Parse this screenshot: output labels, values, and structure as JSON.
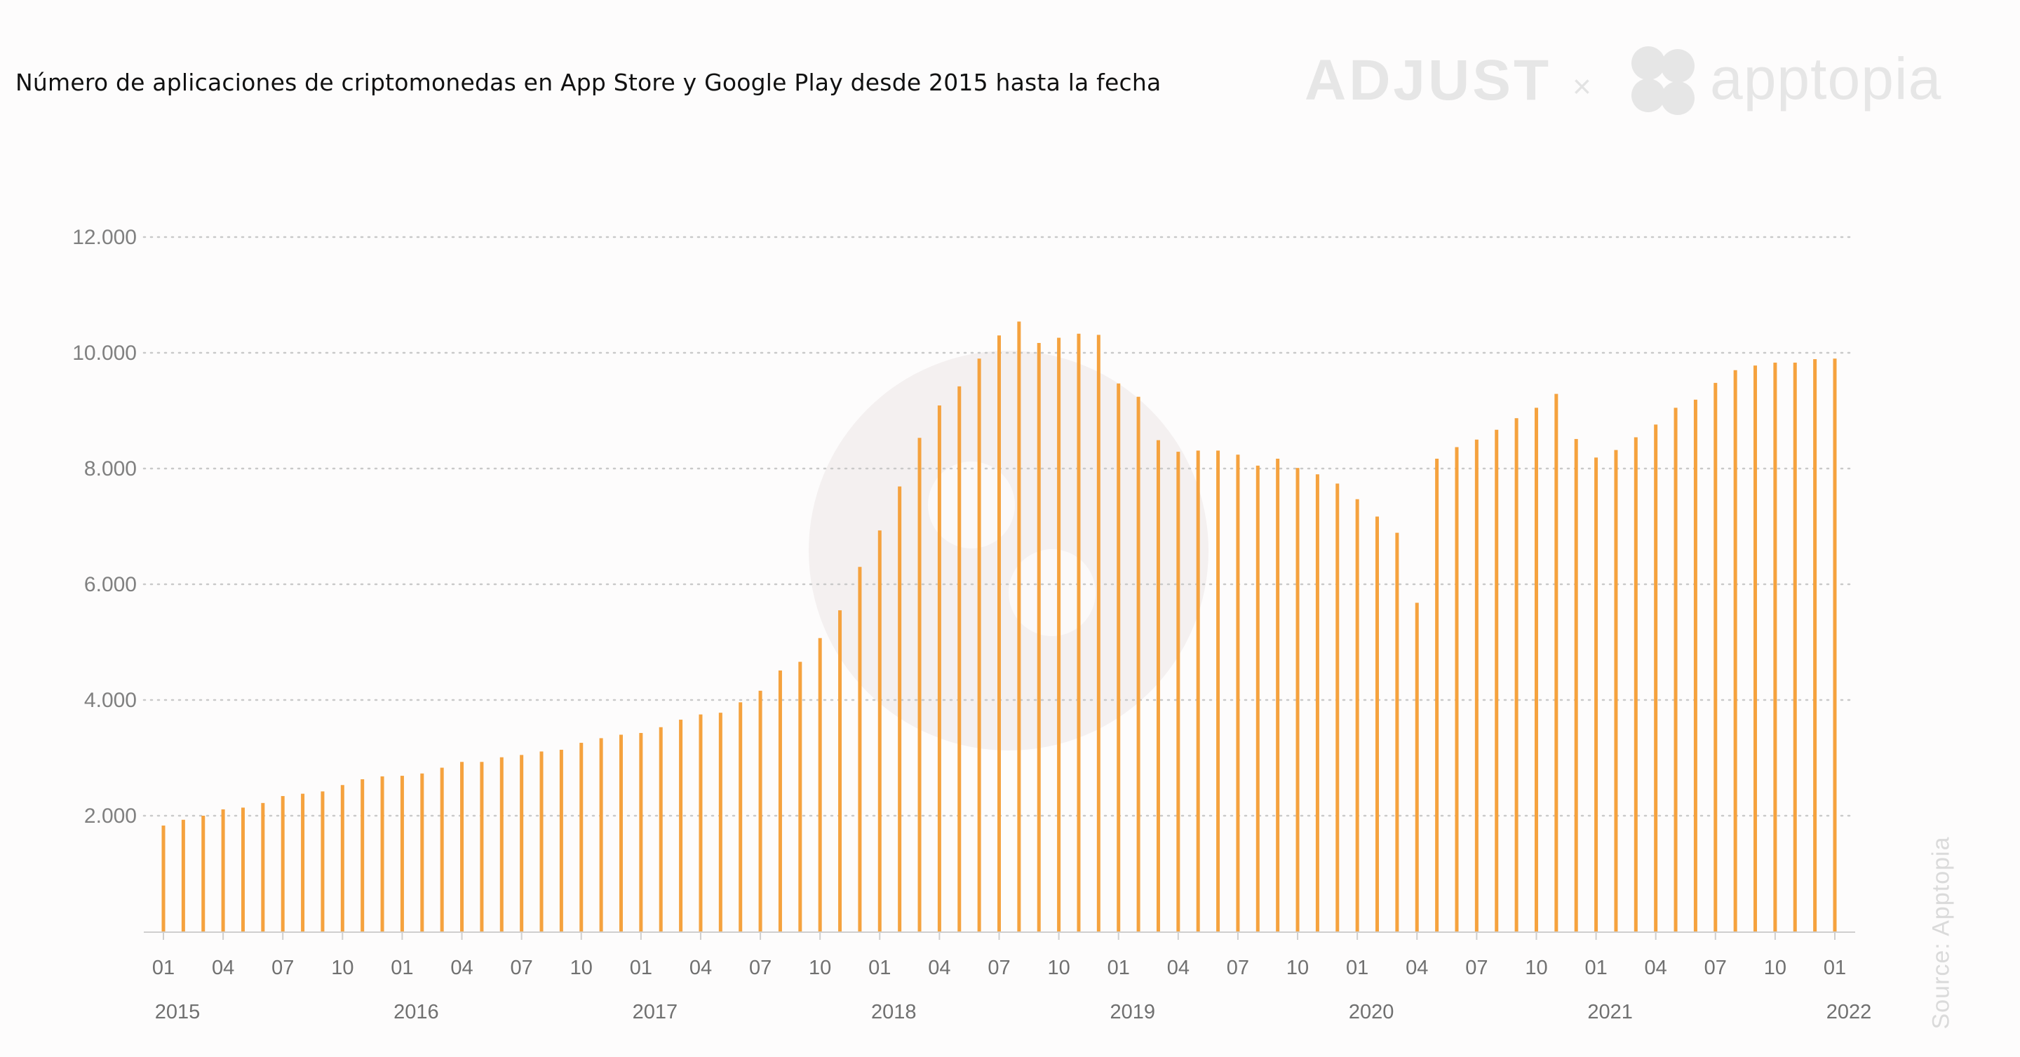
{
  "title": "Número de aplicaciones de criptomonedas en App Store y Google Play desde 2015 hasta la fecha",
  "logos": {
    "adjust": "ADJUST",
    "separator": "×",
    "apptopia": "apptopia"
  },
  "source": "Source: Apptopia",
  "colors": {
    "bar": "#f5a23e",
    "grid": "#c9c9c9",
    "axis": "#cfcfcf",
    "watermark": "#f2eeee"
  },
  "chart_data": {
    "type": "bar",
    "title": "Número de aplicaciones de criptomonedas en App Store y Google Play desde 2015 hasta la fecha",
    "xlabel": "",
    "ylabel": "",
    "ylim": [
      0,
      12000
    ],
    "grid": true,
    "y_ticks": [
      {
        "value": 2000,
        "label": "2.000"
      },
      {
        "value": 4000,
        "label": "4.000"
      },
      {
        "value": 6000,
        "label": "6.000"
      },
      {
        "value": 8000,
        "label": "8.000"
      },
      {
        "value": 10000,
        "label": "10.000"
      },
      {
        "value": 12000,
        "label": "12.000"
      }
    ],
    "x_ticks": [
      {
        "index": 0,
        "label": "01"
      },
      {
        "index": 3,
        "label": "04"
      },
      {
        "index": 6,
        "label": "07"
      },
      {
        "index": 9,
        "label": "10"
      },
      {
        "index": 12,
        "label": "01"
      },
      {
        "index": 15,
        "label": "04"
      },
      {
        "index": 18,
        "label": "07"
      },
      {
        "index": 21,
        "label": "10"
      },
      {
        "index": 24,
        "label": "01"
      },
      {
        "index": 27,
        "label": "04"
      },
      {
        "index": 30,
        "label": "07"
      },
      {
        "index": 33,
        "label": "10"
      },
      {
        "index": 36,
        "label": "01"
      },
      {
        "index": 39,
        "label": "04"
      },
      {
        "index": 42,
        "label": "07"
      },
      {
        "index": 45,
        "label": "10"
      },
      {
        "index": 48,
        "label": "01"
      },
      {
        "index": 51,
        "label": "04"
      },
      {
        "index": 54,
        "label": "07"
      },
      {
        "index": 57,
        "label": "10"
      },
      {
        "index": 60,
        "label": "01"
      },
      {
        "index": 63,
        "label": "04"
      },
      {
        "index": 66,
        "label": "07"
      },
      {
        "index": 69,
        "label": "10"
      },
      {
        "index": 72,
        "label": "01"
      },
      {
        "index": 75,
        "label": "04"
      },
      {
        "index": 78,
        "label": "07"
      },
      {
        "index": 81,
        "label": "10"
      },
      {
        "index": 84,
        "label": "01"
      }
    ],
    "years": [
      {
        "index": 0,
        "label": "2015"
      },
      {
        "index": 12,
        "label": "2016"
      },
      {
        "index": 24,
        "label": "2017"
      },
      {
        "index": 36,
        "label": "2018"
      },
      {
        "index": 48,
        "label": "2019"
      },
      {
        "index": 60,
        "label": "2020"
      },
      {
        "index": 72,
        "label": "2021"
      },
      {
        "index": 84,
        "label": "2022"
      }
    ],
    "categories": [
      "2015-01",
      "2015-02",
      "2015-03",
      "2015-04",
      "2015-05",
      "2015-06",
      "2015-07",
      "2015-08",
      "2015-09",
      "2015-10",
      "2015-11",
      "2015-12",
      "2016-01",
      "2016-02",
      "2016-03",
      "2016-04",
      "2016-05",
      "2016-06",
      "2016-07",
      "2016-08",
      "2016-09",
      "2016-10",
      "2016-11",
      "2016-12",
      "2017-01",
      "2017-02",
      "2017-03",
      "2017-04",
      "2017-05",
      "2017-06",
      "2017-07",
      "2017-08",
      "2017-09",
      "2017-10",
      "2017-11",
      "2017-12",
      "2018-01",
      "2018-02",
      "2018-03",
      "2018-04",
      "2018-05",
      "2018-06",
      "2018-07",
      "2018-08",
      "2018-09",
      "2018-10",
      "2018-11",
      "2018-12",
      "2019-01",
      "2019-02",
      "2019-03",
      "2019-04",
      "2019-05",
      "2019-06",
      "2019-07",
      "2019-08",
      "2019-09",
      "2019-10",
      "2019-11",
      "2019-12",
      "2020-01",
      "2020-02",
      "2020-03",
      "2020-04",
      "2020-05",
      "2020-06",
      "2020-07",
      "2020-08",
      "2020-09",
      "2020-10",
      "2020-11",
      "2020-12",
      "2021-01",
      "2021-02",
      "2021-03",
      "2021-04",
      "2021-05",
      "2021-06",
      "2021-07",
      "2021-08",
      "2021-09",
      "2021-10",
      "2021-11",
      "2021-12",
      "2022-01"
    ],
    "values": [
      1830,
      1930,
      2000,
      2110,
      2140,
      2220,
      2340,
      2380,
      2420,
      2530,
      2630,
      2680,
      2690,
      2730,
      2830,
      2930,
      2930,
      3010,
      3050,
      3110,
      3140,
      3260,
      3340,
      3400,
      3430,
      3530,
      3660,
      3750,
      3780,
      3960,
      4160,
      4510,
      4660,
      5070,
      5550,
      6300,
      6930,
      7690,
      8530,
      9090,
      9420,
      9900,
      10300,
      10540,
      10170,
      10260,
      10330,
      10310,
      9470,
      9240,
      8490,
      8290,
      8310,
      8310,
      8240,
      8050,
      8170,
      8010,
      7900,
      7740,
      7470,
      7170,
      6890,
      5680,
      8170,
      8370,
      8500,
      8670,
      8870,
      9050,
      9290,
      8510,
      8190,
      8320,
      8540,
      8760,
      9050,
      9190,
      9480,
      9700,
      9780,
      9830,
      9830,
      9890,
      9900
    ]
  }
}
